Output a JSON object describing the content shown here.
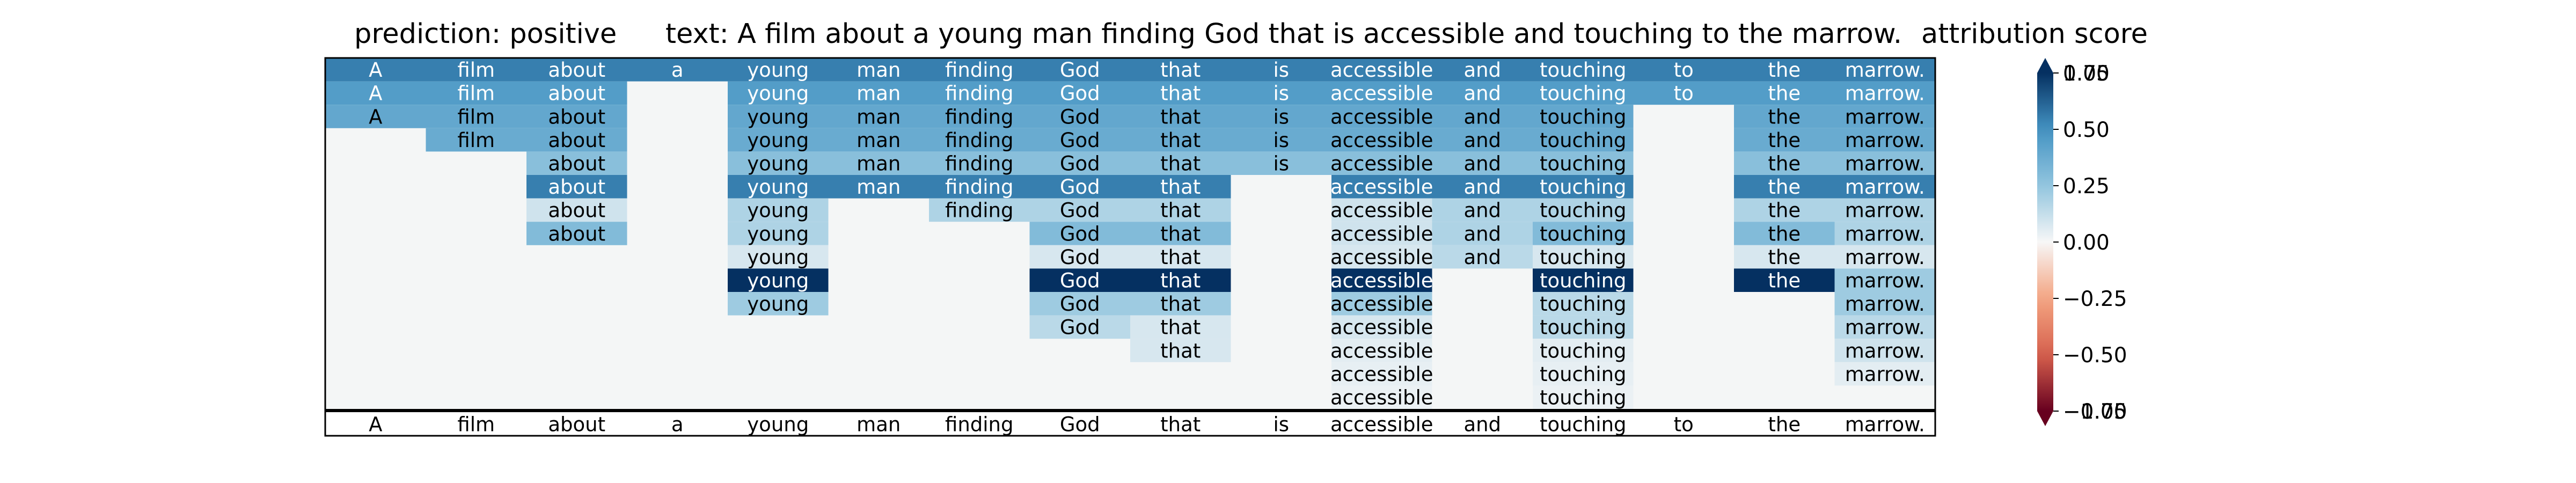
{
  "header": {
    "prediction": "prediction:  positive",
    "text": "text:  A film about a young man finding God that is accessible and touching to the marrow.",
    "attribution": "attribution score"
  },
  "chart_data": {
    "type": "heatmap",
    "tokens": [
      "A",
      "film",
      "about",
      "a",
      "young",
      "man",
      "finding",
      "God",
      "that",
      "is",
      "accessible",
      "and",
      "touching",
      "to",
      "the",
      "marrow."
    ],
    "rows": [
      [
        0.55,
        0.55,
        0.55,
        0.55,
        0.55,
        0.55,
        0.55,
        0.55,
        0.55,
        0.55,
        0.55,
        0.55,
        0.55,
        0.55,
        0.55,
        0.55
      ],
      [
        0.45,
        0.45,
        0.45,
        null,
        0.45,
        0.45,
        0.45,
        0.45,
        0.45,
        0.45,
        0.45,
        0.45,
        0.45,
        0.45,
        0.45,
        0.45
      ],
      [
        0.4,
        0.4,
        0.4,
        null,
        0.4,
        0.4,
        0.4,
        0.4,
        0.4,
        0.4,
        0.4,
        0.4,
        0.4,
        null,
        0.4,
        0.4
      ],
      [
        null,
        0.38,
        0.38,
        null,
        0.38,
        0.38,
        0.38,
        0.38,
        0.38,
        0.38,
        0.38,
        0.38,
        0.38,
        null,
        0.38,
        0.38
      ],
      [
        null,
        null,
        0.28,
        null,
        0.28,
        0.28,
        0.28,
        0.28,
        0.28,
        0.28,
        0.28,
        0.28,
        0.28,
        null,
        0.28,
        0.28
      ],
      [
        null,
        null,
        0.55,
        null,
        0.55,
        0.55,
        0.55,
        0.55,
        0.55,
        null,
        0.55,
        0.55,
        0.55,
        null,
        0.55,
        0.55
      ],
      [
        null,
        null,
        0.1,
        null,
        0.18,
        null,
        0.18,
        0.18,
        0.18,
        null,
        0.1,
        0.18,
        0.18,
        null,
        0.18,
        0.18
      ],
      [
        null,
        null,
        0.3,
        null,
        0.18,
        null,
        null,
        0.3,
        0.3,
        null,
        0.1,
        0.18,
        0.3,
        null,
        0.3,
        0.18
      ],
      [
        null,
        null,
        null,
        null,
        0.08,
        null,
        null,
        0.08,
        0.08,
        null,
        0.08,
        0.15,
        0.08,
        null,
        0.08,
        0.08
      ],
      [
        null,
        null,
        null,
        null,
        0.78,
        null,
        null,
        0.78,
        0.78,
        null,
        0.78,
        null,
        0.78,
        null,
        0.78,
        0.22
      ],
      [
        null,
        null,
        null,
        null,
        0.22,
        null,
        null,
        0.22,
        0.22,
        null,
        0.22,
        null,
        0.15,
        null,
        null,
        0.22
      ],
      [
        null,
        null,
        null,
        null,
        null,
        null,
        null,
        0.15,
        0.08,
        null,
        0.08,
        null,
        0.15,
        null,
        null,
        0.15
      ],
      [
        null,
        null,
        null,
        null,
        null,
        null,
        null,
        null,
        0.08,
        null,
        0.05,
        null,
        0.05,
        null,
        null,
        0.1
      ],
      [
        null,
        null,
        null,
        null,
        null,
        null,
        null,
        null,
        null,
        null,
        0.04,
        null,
        0.04,
        null,
        null,
        0.05
      ],
      [
        null,
        null,
        null,
        null,
        null,
        null,
        null,
        null,
        null,
        null,
        0.03,
        null,
        0.03,
        null,
        null,
        null
      ]
    ],
    "colorbar": {
      "label": "attribution score",
      "range": [
        -0.75,
        0.75
      ],
      "ticks": [
        -0.75,
        -0.5,
        -0.25,
        0.0,
        0.25,
        0.5,
        0.75
      ],
      "tick_labels": [
        "−0.75",
        "−0.50",
        "−0.25",
        "0.00",
        "0.25",
        "0.50",
        "0.75"
      ],
      "top_overlap_label": "1.00",
      "bottom_overlap_label": "−1.00",
      "colormap": "RdBu"
    },
    "colors": {
      "background": "#f4f6f6",
      "frame": "#000000"
    }
  }
}
